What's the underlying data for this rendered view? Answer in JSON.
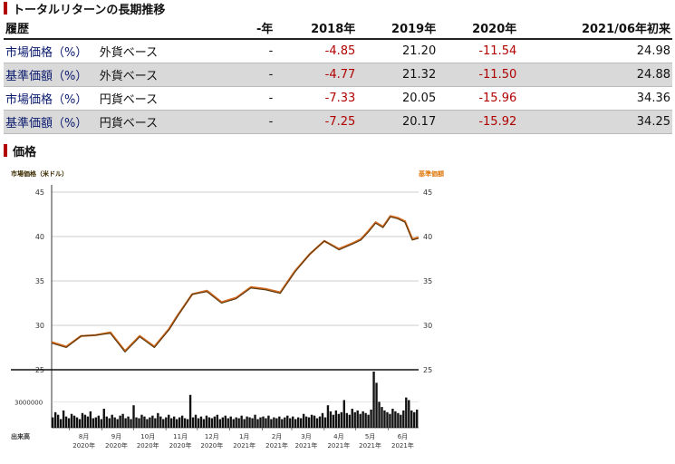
{
  "returns": {
    "title": "トータルリターンの長期推移",
    "headers": [
      "履歴",
      "",
      "-年",
      "2018年",
      "2019年",
      "2020年",
      "2021/06年初来"
    ],
    "rows": [
      {
        "name": "市場価格（%）",
        "ccy": "外貨ベース",
        "v": [
          "-",
          "-4.85",
          "21.20",
          "-11.54",
          "24.98"
        ]
      },
      {
        "name": "基準価額（%）",
        "ccy": "外貨ベース",
        "v": [
          "-",
          "-4.77",
          "21.32",
          "-11.50",
          "24.88"
        ]
      },
      {
        "name": "市場価格（%）",
        "ccy": "円貨ベース",
        "v": [
          "-",
          "-7.33",
          "20.05",
          "-15.96",
          "34.36"
        ]
      },
      {
        "name": "基準価額（%）",
        "ccy": "円貨ベース",
        "v": [
          "-",
          "-7.25",
          "20.17",
          "-15.92",
          "34.25"
        ]
      }
    ]
  },
  "price": {
    "title": "価格"
  },
  "chart_data": {
    "type": "line",
    "title": "",
    "legend": {
      "left": "市場価格（米ドル）",
      "right": "基準価額"
    },
    "colors": {
      "market": "#5a3a10",
      "nav": "#d2691e",
      "legend_left": "#3a2a00",
      "legend_right": "#e07a10",
      "volume": "#111111"
    },
    "ylim": [
      25,
      45
    ],
    "yticks": [
      25,
      30,
      35,
      40,
      45
    ],
    "grid": true,
    "xtick_labels": [
      [
        "8月",
        "2020年"
      ],
      [
        "9月",
        "2020年"
      ],
      [
        "10月",
        "2020年"
      ],
      [
        "11月",
        "2020年"
      ],
      [
        "12月",
        "2020年"
      ],
      [
        "1月",
        "2021年"
      ],
      [
        "2月",
        "2021年"
      ],
      [
        "3月",
        "2021年"
      ],
      [
        "4月",
        "2021年"
      ],
      [
        "5月",
        "2021年"
      ],
      [
        "6月",
        "2021年"
      ]
    ],
    "x": [
      "2020-07-15",
      "2020-07-29",
      "2020-08-12",
      "2020-08-26",
      "2020-09-09",
      "2020-09-23",
      "2020-10-07",
      "2020-10-21",
      "2020-11-04",
      "2020-11-12",
      "2020-11-26",
      "2020-12-10",
      "2020-12-24",
      "2021-01-07",
      "2021-01-21",
      "2021-02-04",
      "2021-02-18",
      "2021-03-04",
      "2021-03-18",
      "2021-04-01",
      "2021-04-15",
      "2021-04-29",
      "2021-05-06",
      "2021-05-13",
      "2021-05-20",
      "2021-05-27",
      "2021-06-03",
      "2021-06-10",
      "2021-06-17",
      "2021-06-24",
      "2021-06-30"
    ],
    "series": [
      {
        "name": "市場価格（米ドル）",
        "values": [
          28.0,
          27.5,
          28.8,
          28.9,
          29.1,
          27.0,
          28.7,
          27.5,
          29.5,
          31.0,
          33.5,
          33.8,
          32.5,
          33.0,
          34.2,
          34.0,
          33.6,
          36.0,
          38.0,
          39.5,
          38.5,
          39.2,
          39.6,
          40.5,
          41.5,
          41.0,
          42.2,
          42.0,
          41.6,
          39.6,
          39.8
        ]
      },
      {
        "name": "基準価額",
        "values": [
          28.1,
          27.6,
          28.8,
          28.9,
          29.2,
          27.1,
          28.8,
          27.6,
          29.6,
          31.1,
          33.5,
          33.9,
          32.6,
          33.1,
          34.3,
          34.1,
          33.7,
          36.1,
          38.0,
          39.5,
          38.6,
          39.3,
          39.7,
          40.6,
          41.6,
          41.1,
          42.3,
          42.1,
          41.7,
          39.7,
          39.9
        ]
      }
    ],
    "volume": {
      "label": "出来高",
      "tick": "3000000",
      "values": [
        1.2,
        1.8,
        1.5,
        1.0,
        2.0,
        1.3,
        1.1,
        1.6,
        1.4,
        1.2,
        1.0,
        1.7,
        1.5,
        1.3,
        1.9,
        1.1,
        1.2,
        1.4,
        1.0,
        2.2,
        1.3,
        1.1,
        1.5,
        1.2,
        1.0,
        1.4,
        1.6,
        1.1,
        1.3,
        1.0,
        2.6,
        1.2,
        1.1,
        1.5,
        1.3,
        1.0,
        1.2,
        1.4,
        1.1,
        1.7,
        1.3,
        1.0,
        1.2,
        1.5,
        1.1,
        1.3,
        1.0,
        1.2,
        1.4,
        1.1,
        1.0,
        3.8,
        1.2,
        1.5,
        1.1,
        1.3,
        1.0,
        1.4,
        1.2,
        1.1,
        1.3,
        1.5,
        1.0,
        1.2,
        1.4,
        1.1,
        1.3,
        1.0,
        1.2,
        1.1,
        1.4,
        1.0,
        1.3,
        1.2,
        1.1,
        1.5,
        1.0,
        1.2,
        1.3,
        1.1,
        1.4,
        1.0,
        1.2,
        1.1,
        1.3,
        1.0,
        1.2,
        1.4,
        1.1,
        1.3,
        1.0,
        1.2,
        1.1,
        1.6,
        1.3,
        1.2,
        1.5,
        1.4,
        1.1,
        1.3,
        1.7,
        1.2,
        2.6,
        1.9,
        1.5,
        2.0,
        1.6,
        1.8,
        3.2,
        1.7,
        1.5,
        2.2,
        1.8,
        2.0,
        1.6,
        1.9,
        1.7,
        1.5,
        2.1,
        6.5,
        5.2,
        3.0,
        2.4,
        2.0,
        1.8,
        1.6,
        2.2,
        1.9,
        1.7,
        1.5,
        2.0,
        3.5,
        3.2,
        2.0,
        1.8,
        2.1
      ]
    }
  }
}
